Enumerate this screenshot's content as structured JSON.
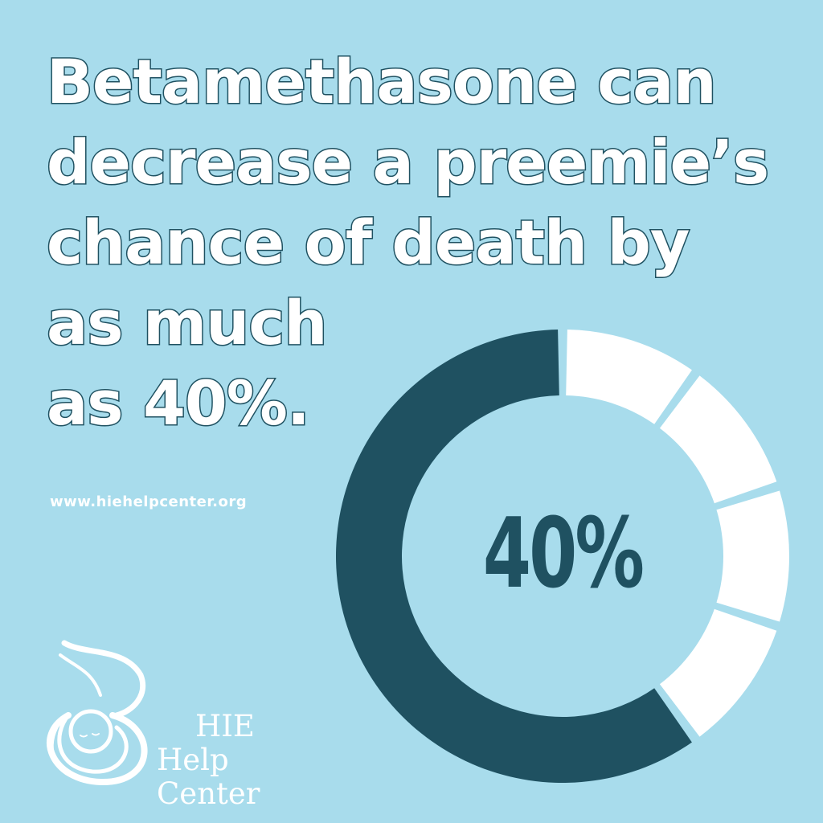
{
  "headline": {
    "lines": [
      "Betamethasone can",
      "decrease a preemie’s",
      "chance of death by",
      "as much",
      "as 40%."
    ]
  },
  "website": "www.hiehelpcenter.org",
  "logo": {
    "line1": "HIE",
    "line2": "Help Center",
    "icon": "mother-holding-baby-icon"
  },
  "colors": {
    "background": "#a8dcec",
    "dark": "#1f5161",
    "light": "#ffffff"
  },
  "chart_data": {
    "type": "pie",
    "style": "donut",
    "center_label": "40%",
    "segments": [
      {
        "value": 10,
        "color": "#ffffff"
      },
      {
        "value": 10,
        "color": "#ffffff"
      },
      {
        "value": 10,
        "color": "#ffffff"
      },
      {
        "value": 10,
        "color": "#ffffff"
      },
      {
        "value": 60,
        "color": "#1f5161"
      }
    ]
  }
}
